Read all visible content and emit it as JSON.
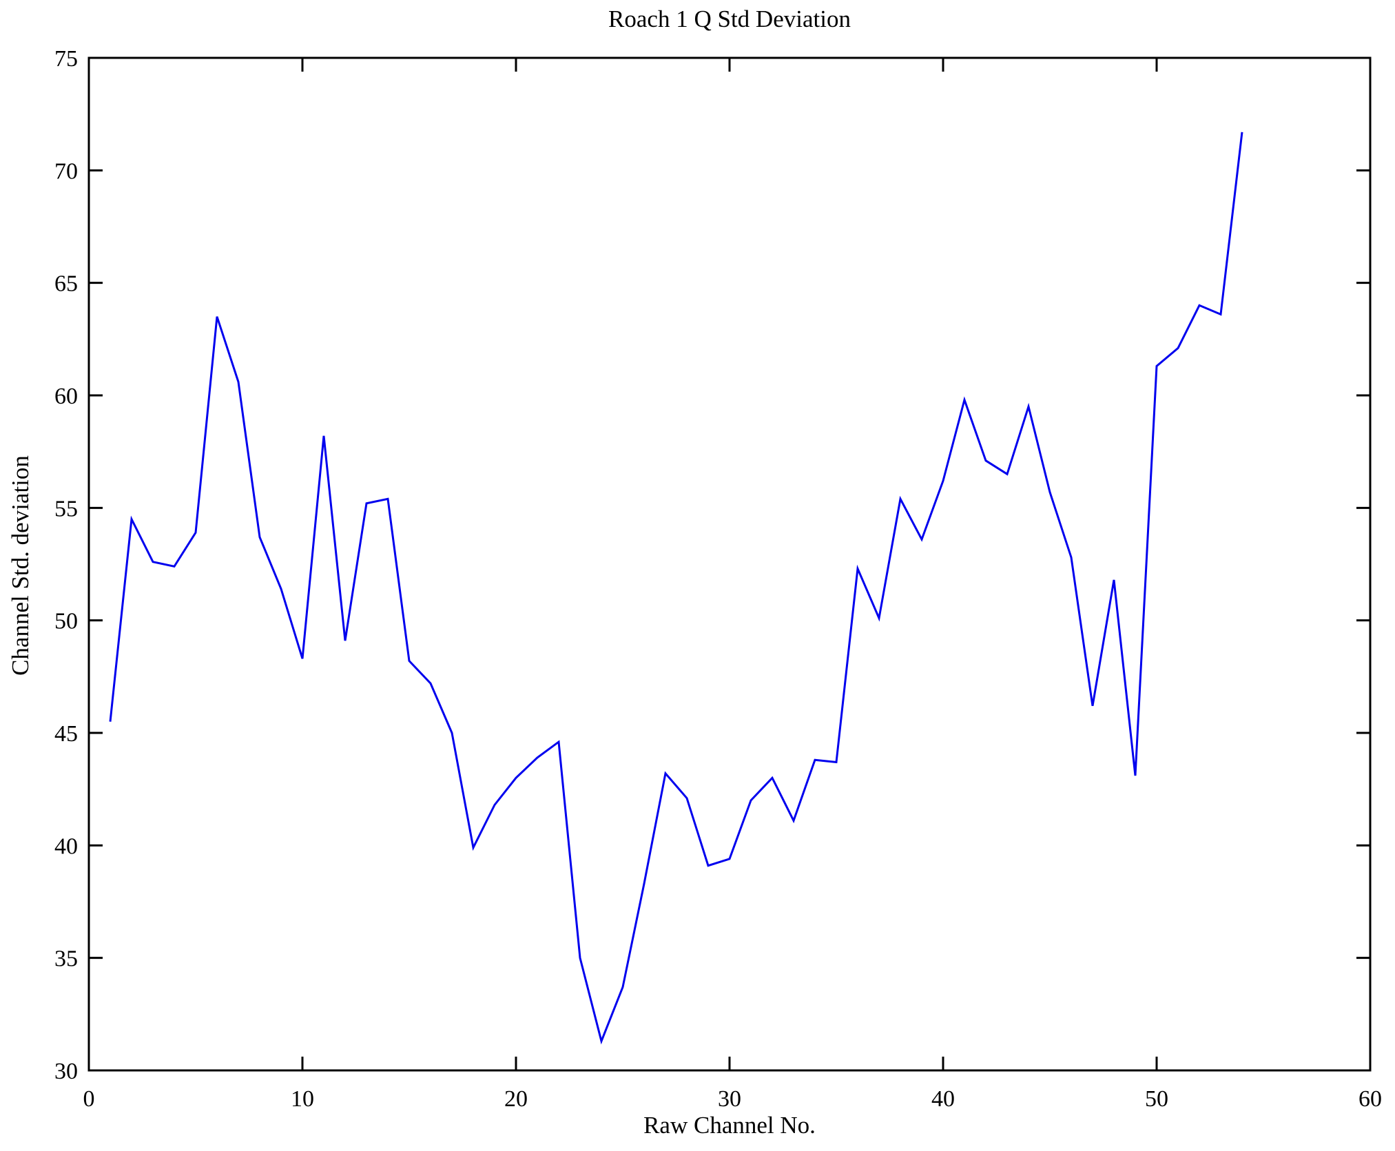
{
  "chart_data": {
    "type": "line",
    "title": "Roach 1 Q Std Deviation",
    "xlabel": "Raw Channel No.",
    "ylabel": "Channel Std. deviation",
    "x": [
      1,
      2,
      3,
      4,
      5,
      6,
      7,
      8,
      9,
      10,
      11,
      12,
      13,
      14,
      15,
      16,
      17,
      18,
      19,
      20,
      21,
      22,
      23,
      24,
      25,
      26,
      27,
      28,
      29,
      30,
      31,
      32,
      33,
      34,
      35,
      36,
      37,
      38,
      39,
      40,
      41,
      42,
      43,
      44,
      45,
      46,
      47,
      48,
      49,
      50,
      51,
      52,
      53,
      54
    ],
    "values": [
      45.5,
      54.5,
      52.6,
      52.4,
      53.9,
      63.5,
      60.6,
      53.7,
      51.4,
      48.3,
      58.2,
      49.1,
      55.2,
      55.4,
      48.2,
      47.2,
      45.0,
      39.9,
      41.8,
      43.0,
      43.9,
      44.6,
      35.0,
      31.3,
      33.7,
      38.3,
      43.2,
      42.1,
      39.1,
      39.4,
      42.0,
      43.0,
      41.1,
      43.8,
      43.7,
      52.3,
      50.1,
      55.4,
      53.6,
      56.2,
      59.8,
      57.1,
      56.5,
      59.5,
      55.7,
      52.8,
      46.2,
      51.8,
      43.1,
      61.3,
      62.1,
      64.0,
      63.6,
      71.7
    ],
    "xlim": [
      0,
      60
    ],
    "ylim": [
      30,
      75
    ],
    "xticks": [
      0,
      10,
      20,
      30,
      40,
      50,
      60
    ],
    "yticks": [
      30,
      35,
      40,
      45,
      50,
      55,
      60,
      65,
      70,
      75
    ],
    "grid": false,
    "legend_position": "none",
    "line_color": "#0000EE",
    "axis_color": "#000000",
    "background_color": "#FFFFFF"
  }
}
